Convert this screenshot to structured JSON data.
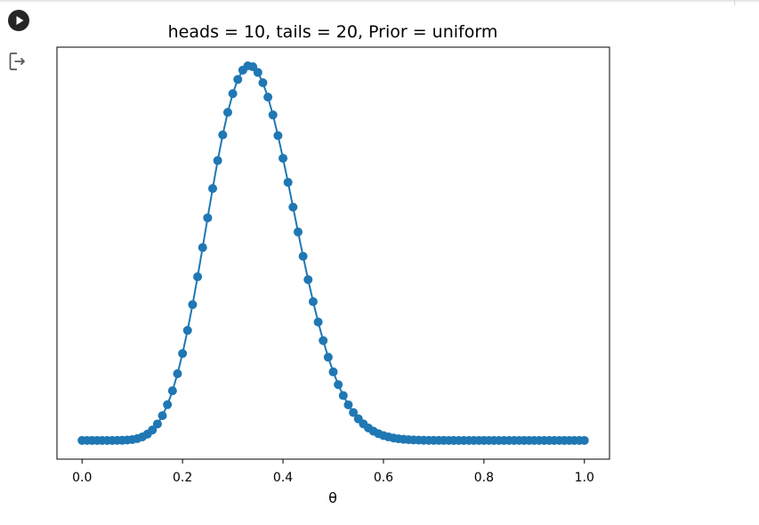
{
  "cell": {
    "run_icon": "play-icon",
    "output_icon": "output-exit-icon"
  },
  "colors": {
    "series": "#1f77b4",
    "run_button": "#262626",
    "axis": "#000000"
  },
  "chart_data": {
    "type": "line",
    "title": "heads = 10, tails = 20, Prior = uniform",
    "xlabel": "θ",
    "ylabel": "",
    "xlim": [
      -0.05,
      1.05
    ],
    "xticks": [
      0.0,
      0.2,
      0.4,
      0.6,
      0.8,
      1.0
    ],
    "xtick_labels": [
      "0.0",
      "0.2",
      "0.4",
      "0.6",
      "0.8",
      "1.0"
    ],
    "yticks_shown": false,
    "grid": false,
    "legend": "none",
    "markers": "circle",
    "series": [
      {
        "x_range": [
          0,
          1
        ],
        "points": 101,
        "distribution": "beta",
        "alpha": 11,
        "beta": 21,
        "y": "unnormalized posterior density (no y tick labels shown)"
      }
    ]
  }
}
